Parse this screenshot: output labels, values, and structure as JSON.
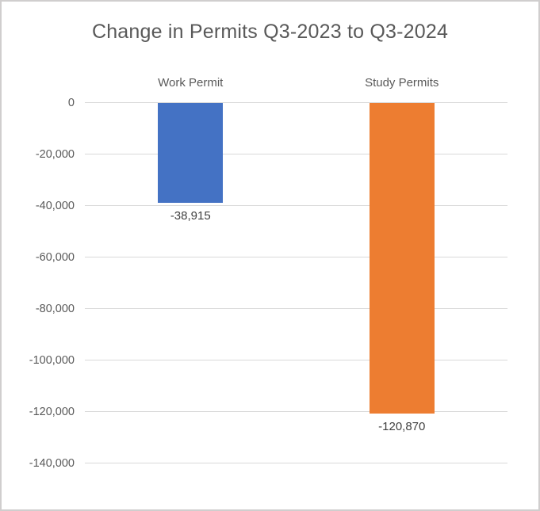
{
  "window": {
    "background": "#FFFFFF",
    "border_color": "#D0CECE"
  },
  "chart_data": {
    "type": "bar",
    "title": "Change in Permits Q3-2023 to Q3-2024",
    "categories": [
      "Work Permit",
      "Study Permits"
    ],
    "values": [
      -38915,
      -120870
    ],
    "data_labels": [
      "-38,915",
      "-120,870"
    ],
    "bar_colors": [
      "#4472C4",
      "#ED7D31"
    ],
    "xlabel": "",
    "ylabel": "",
    "ylim": [
      0,
      -140000
    ],
    "ytick_interval": -20000,
    "yticks": [
      0,
      -20000,
      -40000,
      -60000,
      -80000,
      -100000,
      -120000,
      -140000
    ],
    "ytick_labels": [
      "0",
      "-20,000",
      "-40,000",
      "-60,000",
      "-80,000",
      "-100,000",
      "-120,000",
      "-140,000"
    ],
    "grid": true,
    "gridline_color": "#D9D9D9",
    "title_color": "#595959",
    "axis_label_color": "#595959",
    "data_label_color": "#404040",
    "legend_position": "none"
  }
}
